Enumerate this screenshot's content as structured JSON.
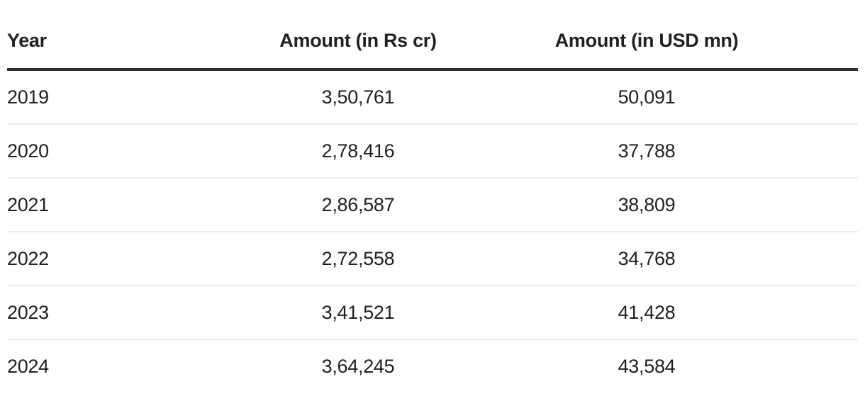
{
  "table": {
    "columns": [
      "Year",
      "Amount (in Rs cr)",
      "Amount (in USD mn)"
    ],
    "column_keys": [
      "year",
      "rs-cr",
      "usd-mn"
    ],
    "rows": [
      [
        "2019",
        "3,50,761",
        "50,091"
      ],
      [
        "2020",
        "2,78,416",
        "37,788"
      ],
      [
        "2021",
        "2,86,587",
        "38,809"
      ],
      [
        "2022",
        "2,72,558",
        "34,768"
      ],
      [
        "2023",
        "3,41,521",
        "41,428"
      ],
      [
        "2024",
        "3,64,245",
        "43,584"
      ]
    ]
  },
  "chart_data": {
    "type": "table",
    "columns": [
      "Year",
      "Amount (in Rs cr)",
      "Amount (in USD mn)"
    ],
    "categories": [
      "2019",
      "2020",
      "2021",
      "2022",
      "2023",
      "2024"
    ],
    "series": [
      {
        "name": "Amount (in Rs cr)",
        "values": [
          350761,
          278416,
          286587,
          272558,
          341521,
          364245
        ]
      },
      {
        "name": "Amount (in USD mn)",
        "values": [
          50091,
          37788,
          38809,
          34768,
          41428,
          43584
        ]
      }
    ],
    "title": "",
    "legend_position": "none",
    "grid": "horizontal row dividers"
  },
  "colors": {
    "background": "#ffffff",
    "text": "#202124",
    "header_rule": "#2e2e2e",
    "row_divider": "#ececec"
  }
}
